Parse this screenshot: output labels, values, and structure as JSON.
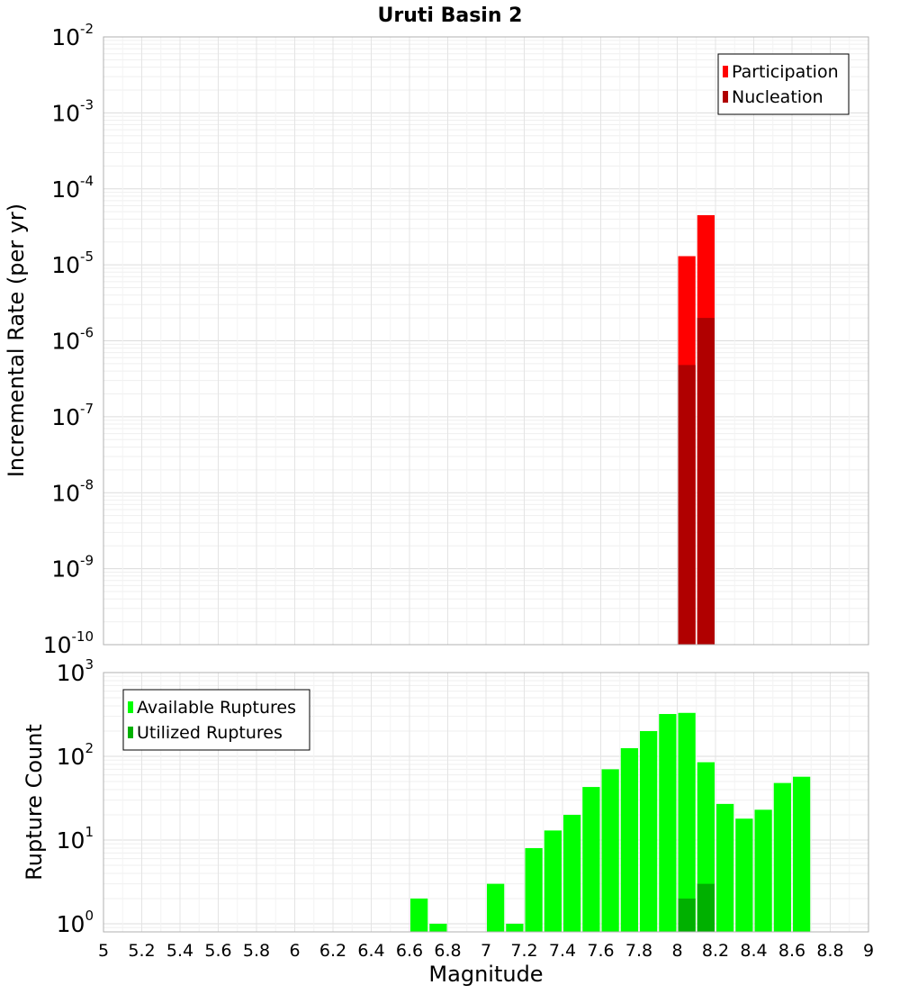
{
  "chart_data": [
    {
      "type": "bar",
      "title": "Uruti Basin 2",
      "xlabel": "",
      "ylabel": "Incremental Rate (per yr)",
      "yscale": "log",
      "ylim": [
        1e-10,
        0.01
      ],
      "xlim": [
        5,
        9
      ],
      "bar_width": 0.1,
      "y_tick_labels": [
        {
          "base": "10",
          "exp": "-10",
          "value": 1e-10
        },
        {
          "base": "10",
          "exp": "-9",
          "value": 1e-09
        },
        {
          "base": "10",
          "exp": "-8",
          "value": 1e-08
        },
        {
          "base": "10",
          "exp": "-7",
          "value": 1e-07
        },
        {
          "base": "10",
          "exp": "-6",
          "value": 1e-06
        },
        {
          "base": "10",
          "exp": "-5",
          "value": 1e-05
        },
        {
          "base": "10",
          "exp": "-4",
          "value": 0.0001
        },
        {
          "base": "10",
          "exp": "-3",
          "value": 0.001
        },
        {
          "base": "10",
          "exp": "-2",
          "value": 0.01
        }
      ],
      "legend_position": "top-right",
      "series": [
        {
          "name": "Participation",
          "color": "#ff0000",
          "x": [
            8.05,
            8.15
          ],
          "values": [
            1.3e-05,
            4.5e-05
          ]
        },
        {
          "name": "Nucleation",
          "color": "#b00000",
          "x": [
            8.05,
            8.15
          ],
          "values": [
            4.8e-07,
            2e-06
          ]
        }
      ]
    },
    {
      "type": "bar",
      "title": "",
      "xlabel": "Magnitude",
      "ylabel": "Rupture Count",
      "yscale": "log",
      "ylim": [
        0.8,
        1000
      ],
      "xlim": [
        5,
        9
      ],
      "bar_width": 0.1,
      "x_tick_labels": [
        "5",
        "5.2",
        "5.4",
        "5.6",
        "5.8",
        "6",
        "6.2",
        "6.4",
        "6.6",
        "6.8",
        "7",
        "7.2",
        "7.4",
        "7.6",
        "7.8",
        "8",
        "8.2",
        "8.4",
        "8.6",
        "8.8",
        "9"
      ],
      "y_tick_labels": [
        {
          "base": "10",
          "exp": "0",
          "value": 1
        },
        {
          "base": "10",
          "exp": "1",
          "value": 10
        },
        {
          "base": "10",
          "exp": "2",
          "value": 100
        },
        {
          "base": "10",
          "exp": "3",
          "value": 1000
        }
      ],
      "legend_position": "top-left",
      "series": [
        {
          "name": "Available Ruptures",
          "color": "#00ff00",
          "x": [
            6.65,
            6.75,
            7.05,
            7.15,
            7.25,
            7.35,
            7.45,
            7.55,
            7.65,
            7.75,
            7.85,
            7.95,
            8.05,
            8.15,
            8.25,
            8.35,
            8.45,
            8.55,
            8.65
          ],
          "values": [
            2,
            1,
            3,
            1,
            8,
            13,
            20,
            43,
            70,
            125,
            200,
            320,
            330,
            85,
            27,
            18,
            23,
            48,
            57
          ]
        },
        {
          "name": "Utilized Ruptures",
          "color": "#00b000",
          "x": [
            8.05,
            8.15
          ],
          "values": [
            2,
            3
          ]
        }
      ]
    }
  ]
}
